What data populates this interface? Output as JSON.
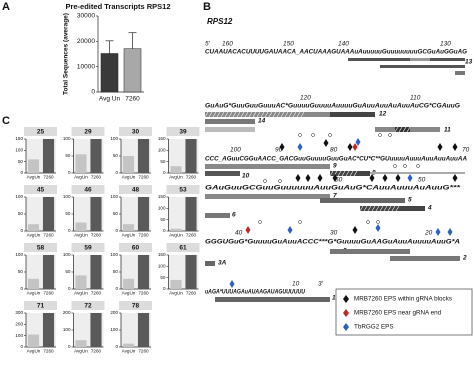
{
  "panel_labels": [
    "A",
    "B",
    "C"
  ],
  "chart_data": [
    {
      "type": "bar",
      "title": "Pre-edited Transcripts RPS12",
      "ylabel": "Total Sequences (average)",
      "categories": [
        "Avg Un",
        "7260"
      ],
      "values": [
        15200,
        17100
      ],
      "errors": [
        5000,
        6300
      ],
      "colors": [
        "#3a3a3a",
        "#a8a8a8"
      ],
      "ylim": [
        0,
        30000
      ],
      "yticks": [
        0,
        10000,
        20000,
        30000
      ]
    },
    {
      "type": "bar",
      "title": "25",
      "categories": [
        "AvgUn",
        "7260"
      ],
      "values": [
        60,
        150
      ],
      "colors": [
        "#c4c4c4",
        "#5a5a5a"
      ],
      "ylim": [
        0,
        150
      ],
      "yticks": [
        0,
        50,
        100,
        150
      ]
    },
    {
      "type": "bar",
      "title": "29",
      "categories": [
        "AvgUn",
        "7260"
      ],
      "values": [
        55,
        100
      ],
      "colors": [
        "#c4c4c4",
        "#5a5a5a"
      ],
      "ylim": [
        0,
        100
      ],
      "yticks": [
        0,
        50,
        100
      ]
    },
    {
      "type": "bar",
      "title": "30",
      "categories": [
        "AvgUn",
        "7260"
      ],
      "values": [
        50,
        100
      ],
      "colors": [
        "#c4c4c4",
        "#5a5a5a"
      ],
      "ylim": [
        0,
        100
      ],
      "yticks": [
        0,
        50,
        100
      ]
    },
    {
      "type": "bar",
      "title": "39",
      "categories": [
        "AvgUn",
        "7260"
      ],
      "values": [
        30,
        150
      ],
      "colors": [
        "#c4c4c4",
        "#5a5a5a"
      ],
      "ylim": [
        0,
        150
      ],
      "yticks": [
        0,
        50,
        100,
        150
      ]
    },
    {
      "type": "bar",
      "title": "45",
      "categories": [
        "AvgUn",
        "7260"
      ],
      "values": [
        20,
        100
      ],
      "colors": [
        "#c4c4c4",
        "#5a5a5a"
      ],
      "ylim": [
        0,
        100
      ],
      "yticks": [
        0,
        50,
        100
      ]
    },
    {
      "type": "bar",
      "title": "46",
      "categories": [
        "AvgUn",
        "7260"
      ],
      "values": [
        25,
        100
      ],
      "colors": [
        "#c4c4c4",
        "#5a5a5a"
      ],
      "ylim": [
        0,
        100
      ],
      "yticks": [
        0,
        50,
        100
      ]
    },
    {
      "type": "bar",
      "title": "48",
      "categories": [
        "AvgUn",
        "7260"
      ],
      "values": [
        20,
        100
      ],
      "colors": [
        "#c4c4c4",
        "#5a5a5a"
      ],
      "ylim": [
        0,
        100
      ],
      "yticks": [
        0,
        50,
        100
      ]
    },
    {
      "type": "bar",
      "title": "53",
      "categories": [
        "AvgUn",
        "7260"
      ],
      "values": [
        10,
        150
      ],
      "colors": [
        "#c4c4c4",
        "#5a5a5a"
      ],
      "ylim": [
        0,
        150
      ],
      "yticks": [
        0,
        50,
        100,
        150
      ]
    },
    {
      "type": "bar",
      "title": "58",
      "categories": [
        "AvgUn",
        "7260"
      ],
      "values": [
        30,
        100
      ],
      "colors": [
        "#c4c4c4",
        "#5a5a5a"
      ],
      "ylim": [
        0,
        100
      ],
      "yticks": [
        0,
        50,
        100
      ]
    },
    {
      "type": "bar",
      "title": "59",
      "categories": [
        "AvgUn",
        "7260"
      ],
      "values": [
        40,
        100
      ],
      "colors": [
        "#c4c4c4",
        "#5a5a5a"
      ],
      "ylim": [
        0,
        100
      ],
      "yticks": [
        0,
        50,
        100
      ]
    },
    {
      "type": "bar",
      "title": "60",
      "categories": [
        "AvgUn",
        "7260"
      ],
      "values": [
        30,
        100
      ],
      "colors": [
        "#c4c4c4",
        "#5a5a5a"
      ],
      "ylim": [
        0,
        100
      ],
      "yticks": [
        0,
        50,
        100
      ]
    },
    {
      "type": "bar",
      "title": "61",
      "categories": [
        "AvgUn",
        "7260"
      ],
      "values": [
        40,
        150
      ],
      "colors": [
        "#c4c4c4",
        "#5a5a5a"
      ],
      "ylim": [
        0,
        150
      ],
      "yticks": [
        0,
        50,
        100,
        150
      ]
    },
    {
      "type": "bar",
      "title": "71",
      "categories": [
        "AvgUn",
        "7260"
      ],
      "values": [
        110,
        300
      ],
      "colors": [
        "#c4c4c4",
        "#5a5a5a"
      ],
      "ylim": [
        0,
        300
      ],
      "yticks": [
        0,
        100,
        200,
        300
      ]
    },
    {
      "type": "bar",
      "title": "72",
      "categories": [
        "AvgUn",
        "7260"
      ],
      "values": [
        40,
        200
      ],
      "colors": [
        "#c4c4c4",
        "#5a5a5a"
      ],
      "ylim": [
        0,
        200
      ],
      "yticks": [
        0,
        100,
        200
      ]
    },
    {
      "type": "bar",
      "title": "78",
      "categories": [
        "AvgUn",
        "7260"
      ],
      "values": [
        20,
        200
      ],
      "colors": [
        "#c4c4c4",
        "#5a5a5a"
      ],
      "ylim": [
        0,
        200
      ],
      "yticks": [
        0,
        100,
        200
      ]
    }
  ],
  "diagram": {
    "title": "RPS12",
    "ends": [
      "5'",
      "3'"
    ],
    "rows": [
      {
        "numbers": [
          "160",
          "150",
          "140",
          "130"
        ],
        "sequence": "CUAAUACACUUUUGAUAACA_AACUAAAGUAAAuAuuuuuGuuuuuuuuGCGuAuGGuAG"
      },
      {
        "numbers": [
          "120",
          "110"
        ],
        "sequence": "GuAuG*GuuGuuGuuuAC*GuuuuGuuuuAuuuuGuAuuAuuAuAuuAuCG*CGAuuG"
      },
      {
        "numbers": [
          "100",
          "90",
          "80",
          "70"
        ],
        "sequence": "CCC_AGuuCGGuAACC_GACGuuGuuuuGuuGuAC*CU*C**GUuuuuAuuuAuuAuuAuuAA"
      },
      {
        "numbers": [
          "60",
          "50"
        ],
        "sequence": "GAuGuuGCGuuGuuuuuuAuuGuAuG*CAuuAuuuAuAuuG***"
      },
      {
        "numbers": [
          "40",
          "30",
          "20"
        ],
        "sequence": "GGGUGuG*GuuuuGuAuuACCC***G*GuuuuGuAAGuAuuAuuuuAuuG*A"
      },
      {
        "numbers": [
          "10"
        ],
        "sequence": "uAGA*UUUAGAuAUAAGAUAGUUUUUU"
      }
    ],
    "grna_labels": [
      "14",
      "13",
      "12",
      "11",
      "10",
      "9",
      "8",
      "7",
      "6",
      "5",
      "4",
      "3",
      "3A",
      "2",
      "1"
    ],
    "legend": [
      "MRB7260 EPS within gRNA blocks",
      "MRB7260 EPS near gRNA end",
      "TbRGG2 EPS"
    ]
  }
}
